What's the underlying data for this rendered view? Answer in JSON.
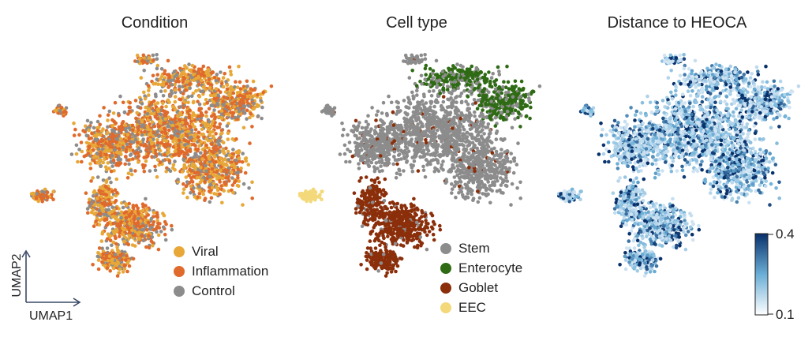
{
  "chart_data": [
    {
      "type": "scatter",
      "title": "Condition",
      "xlabel": "UMAP1",
      "ylabel": "UMAP2",
      "legend": [
        {
          "name": "Viral",
          "color": "#E8A838"
        },
        {
          "name": "Inflammation",
          "color": "#E06A2C"
        },
        {
          "name": "Control",
          "color": "#8C8C8C"
        }
      ],
      "legend_position": "bottom-right"
    },
    {
      "type": "scatter",
      "title": "Cell type",
      "legend": [
        {
          "name": "Stem",
          "color": "#8C8C8C"
        },
        {
          "name": "Enterocyte",
          "color": "#2E6B14"
        },
        {
          "name": "Goblet",
          "color": "#8B2E0A"
        },
        {
          "name": "EEC",
          "color": "#F3D97A"
        }
      ],
      "legend_position": "bottom-right"
    },
    {
      "type": "scatter",
      "title": "Distance to HEOCA",
      "colorbar": {
        "min": 0.1,
        "max": 0.4,
        "min_label": "0.1",
        "max_label": "0.4",
        "colors": [
          "#ffffff",
          "#6aaed6",
          "#08306b"
        ]
      }
    }
  ]
}
